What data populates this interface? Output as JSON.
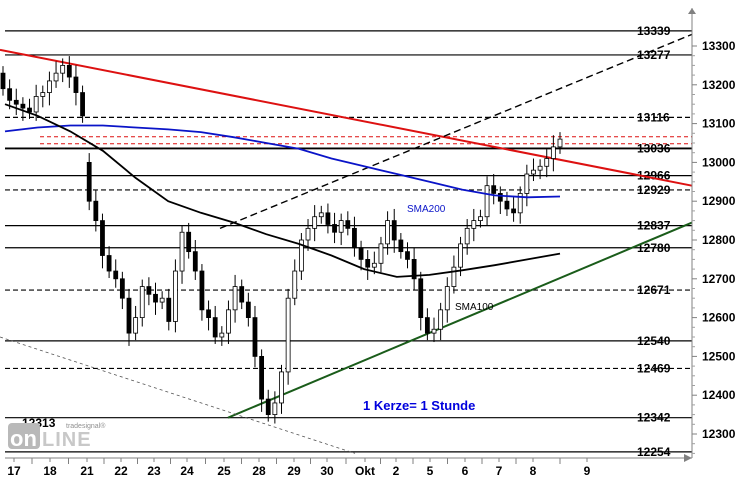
{
  "chart_data": {
    "type": "candlestick",
    "title": "",
    "note": "1 Kerze= 1 Stunde",
    "ylim": [
      12250,
      13380
    ],
    "y_ticks": [
      12300,
      12400,
      12500,
      12600,
      12700,
      12800,
      12900,
      13000,
      13100,
      13200,
      13300
    ],
    "x_ticks": [
      "17",
      "18",
      "21",
      "22",
      "23",
      "24",
      "25",
      "28",
      "29",
      "30",
      "Okt",
      "2",
      "5",
      "6",
      "7",
      "8",
      "9"
    ],
    "levels": [
      {
        "value": 13339,
        "label": "13339",
        "style": "solid"
      },
      {
        "value": 13277,
        "label": "13277",
        "style": "solid"
      },
      {
        "value": 13116,
        "label": "13116",
        "style": "dashed"
      },
      {
        "value": 13036,
        "label": "13036",
        "style": "solid-bold"
      },
      {
        "value": 12966,
        "label": "12966",
        "style": "solid"
      },
      {
        "value": 12929,
        "label": "12929",
        "style": "dashed"
      },
      {
        "value": 12837,
        "label": "12837",
        "style": "solid"
      },
      {
        "value": 12780,
        "label": "12780",
        "style": "solid"
      },
      {
        "value": 12671,
        "label": "12671",
        "style": "dashed"
      },
      {
        "value": 12540,
        "label": "12540",
        "style": "solid"
      },
      {
        "value": 12469,
        "label": "12469",
        "style": "dashed"
      },
      {
        "value": 12342,
        "label": "12342",
        "style": "solid"
      },
      {
        "value": 12254,
        "label": "12254",
        "style": "solid"
      }
    ],
    "marker_label": "12313",
    "series_labels": {
      "sma200": "SMA200",
      "sma100": "SMA100"
    },
    "colors": {
      "sma200": "#0a14c8",
      "sma100": "#000000",
      "trend_down": "#dd1111",
      "trend_up": "#1a5c1a",
      "note": "#0000dd",
      "ref_dashed": "#dd1111"
    },
    "series": [
      {
        "name": "Kurs",
        "close": [
          13190,
          13160,
          13150,
          13140,
          13130,
          13170,
          13180,
          13210,
          13230,
          13250,
          13220,
          13180,
          13120,
          12900,
          12850,
          12760,
          12720,
          12700,
          12650,
          12560,
          12600,
          12680,
          12660,
          12640,
          12650,
          12590,
          12720,
          12820,
          12770,
          12720,
          12620,
          12600,
          12550,
          12560,
          12620,
          12680,
          12640,
          12600,
          12500,
          12390,
          12350,
          12380,
          12460,
          12650,
          12720,
          12800,
          12830,
          12860,
          12870,
          12840,
          12820,
          12850,
          12830,
          12780,
          12750,
          12730,
          12740,
          12790,
          12850,
          12800,
          12770,
          12750,
          12700,
          12600,
          12560,
          12570,
          12620,
          12680,
          12730,
          12790,
          12830,
          12850,
          12860,
          12940,
          12920,
          12900,
          12880,
          12870,
          12920,
          12970,
          12980,
          12990,
          13010,
          13040,
          13060
        ],
        "open": [
          13230,
          13190,
          13160,
          13150,
          13140,
          13130,
          13170,
          13180,
          13210,
          13230,
          13250,
          13220,
          13180,
          13000,
          12900,
          12850,
          12760,
          12720,
          12700,
          12650,
          12560,
          12600,
          12680,
          12660,
          12640,
          12650,
          12590,
          12720,
          12820,
          12770,
          12720,
          12620,
          12600,
          12550,
          12560,
          12620,
          12680,
          12640,
          12600,
          12500,
          12390,
          12350,
          12380,
          12460,
          12650,
          12720,
          12800,
          12830,
          12860,
          12870,
          12840,
          12820,
          12850,
          12830,
          12780,
          12750,
          12730,
          12740,
          12790,
          12850,
          12800,
          12770,
          12750,
          12700,
          12600,
          12560,
          12570,
          12620,
          12680,
          12730,
          12790,
          12830,
          12850,
          12860,
          12940,
          12920,
          12900,
          12880,
          12870,
          12920,
          12970,
          12980,
          12990,
          13010,
          13040
        ]
      },
      {
        "name": "SMA200",
        "values": [
          13080,
          13090,
          13095,
          13095,
          13090,
          13085,
          13078,
          13065,
          13050,
          13035,
          13010,
          12990,
          12970,
          12950,
          12930,
          12915,
          12910,
          12912
        ]
      },
      {
        "name": "SMA100",
        "values": [
          13150,
          13120,
          13080,
          13030,
          12960,
          12900,
          12870,
          12845,
          12815,
          12790,
          12760,
          12725,
          12705,
          12710,
          12722,
          12735,
          12750,
          12765
        ]
      }
    ]
  }
}
